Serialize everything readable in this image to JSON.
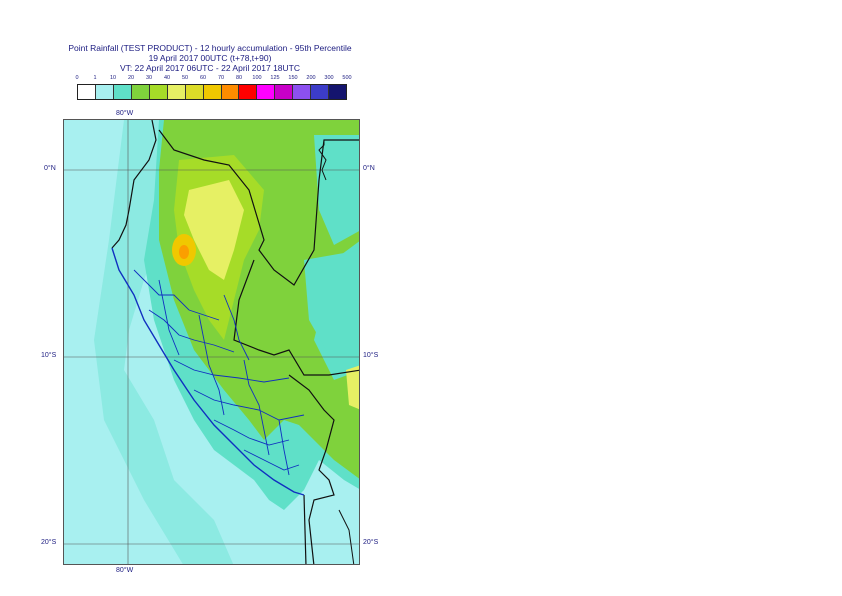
{
  "title": {
    "line1": "Point Rainfall (TEST PRODUCT) - 12 hourly accumulation - 95th Percentile",
    "line2": "19 April 2017 00UTC (t+78,t+90)",
    "line3": "VT: 22 April 2017 06UTC - 22 April 2017 18UTC"
  },
  "legend": {
    "thresholds": [
      "0",
      "1",
      "10",
      "20",
      "30",
      "40",
      "50",
      "60",
      "70",
      "80",
      "100",
      "125",
      "150",
      "200",
      "300",
      "500"
    ],
    "colors": [
      "#ffffff",
      "#a8f0f0",
      "#5fe0c8",
      "#7fd23c",
      "#a6dc28",
      "#e6f064",
      "#dcdc28",
      "#f0c800",
      "#ff8c00",
      "#ff0000",
      "#ff00ff",
      "#c800c8",
      "#8c50f0",
      "#3c3cc8",
      "#14146e"
    ]
  },
  "axes": {
    "lon_top": "80°W",
    "lon_bottom": "80°W",
    "lat_0_left": "0°N",
    "lat_0_right": "0°N",
    "lat_10_left": "10°S",
    "lat_10_right": "10°S",
    "lat_20_left": "20°S",
    "lat_20_right": "20°S"
  }
}
